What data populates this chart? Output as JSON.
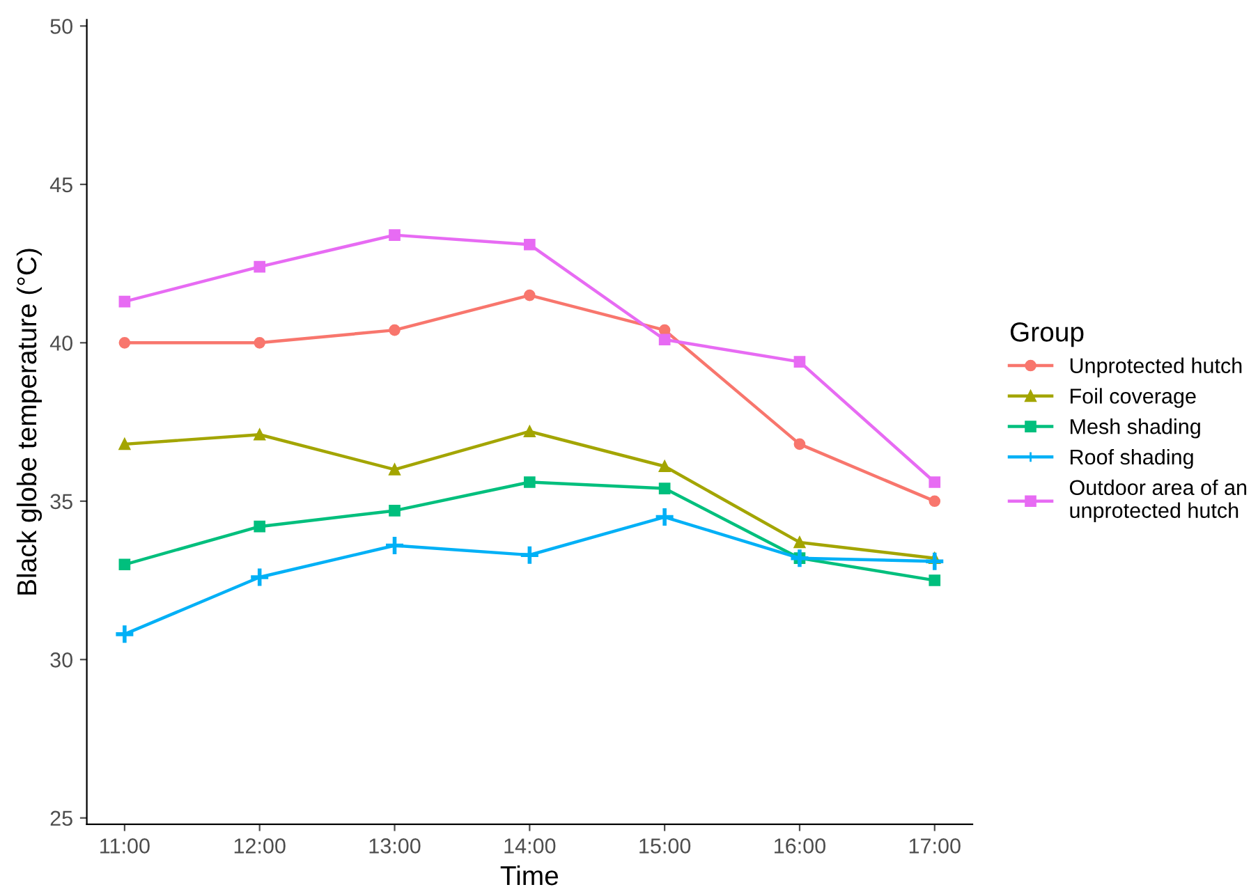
{
  "chart_data": {
    "type": "line",
    "xlabel": "Time",
    "ylabel": "Black globe temperature (°C)",
    "legend_title": "Group",
    "x": [
      11,
      12,
      13,
      14,
      15,
      16,
      17
    ],
    "series": [
      {
        "name": "Unprotected hutch",
        "color": "#f8766d",
        "marker": "circle",
        "values": [
          40.0,
          40.0,
          40.4,
          41.5,
          40.4,
          36.8,
          35.0
        ]
      },
      {
        "name": "Foil coverage",
        "color": "#a3a500",
        "marker": "triangle",
        "values": [
          36.8,
          37.1,
          36.0,
          37.2,
          36.1,
          33.7,
          33.2
        ]
      },
      {
        "name": "Mesh shading",
        "color": "#00bf7d",
        "marker": "square",
        "values": [
          33.0,
          34.2,
          34.7,
          35.6,
          35.4,
          33.2,
          32.5
        ]
      },
      {
        "name": "Roof shading",
        "color": "#00b0f6",
        "marker": "cross",
        "values": [
          30.8,
          32.6,
          33.6,
          33.3,
          34.5,
          33.2,
          33.1
        ]
      },
      {
        "name": "Outdoor area of an\nunprotected hutch",
        "color": "#e76bf3",
        "marker": "square",
        "values": [
          41.3,
          42.4,
          43.4,
          43.1,
          40.1,
          39.4,
          35.6
        ]
      }
    ],
    "xlim": [
      10.72,
      17.28
    ],
    "ylim": [
      24.8,
      50.2
    ],
    "xticks": [
      {
        "value": 11,
        "label": "11:00"
      },
      {
        "value": 12,
        "label": "12:00"
      },
      {
        "value": 13,
        "label": "13:00"
      },
      {
        "value": 14,
        "label": "14:00"
      },
      {
        "value": 15,
        "label": "15:00"
      },
      {
        "value": 16,
        "label": "16:00"
      },
      {
        "value": 17,
        "label": "17:00"
      }
    ],
    "yticks": [
      25,
      30,
      35,
      40,
      45,
      50
    ],
    "grid": false,
    "legend": "right",
    "line_style": "solid"
  }
}
